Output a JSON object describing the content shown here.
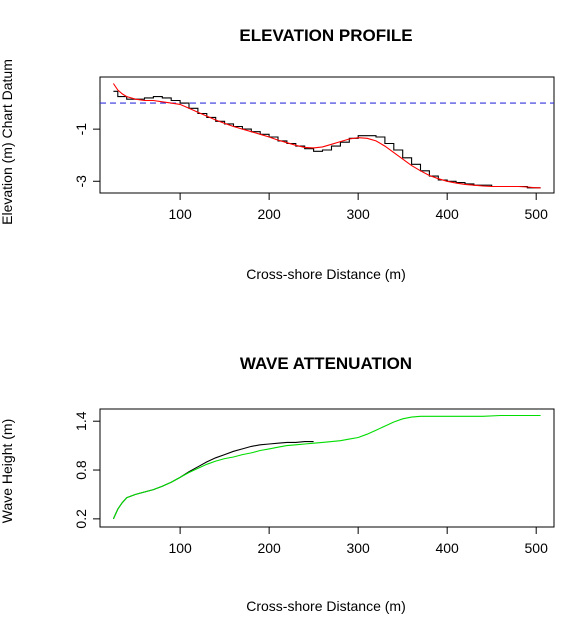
{
  "chart_data": [
    {
      "type": "line",
      "title": "ELEVATION PROFILE",
      "xlabel": "Cross-shore Distance (m)",
      "ylabel": "Elevation (m) Chart Datum",
      "xlim": [
        10,
        520
      ],
      "ylim": [
        -3.45,
        1.0
      ],
      "xticks": [
        100,
        200,
        300,
        400,
        500
      ],
      "yticks": [
        -3,
        -1
      ],
      "grid": false,
      "reference_line": {
        "y": 0,
        "style": "dashed",
        "color": "#3333dd"
      },
      "series": [
        {
          "color": "#000000",
          "style": "step",
          "x": [
            25,
            30,
            40,
            50,
            60,
            70,
            80,
            90,
            100,
            110,
            120,
            130,
            140,
            150,
            160,
            170,
            180,
            190,
            200,
            210,
            220,
            230,
            240,
            250,
            260,
            270,
            280,
            290,
            300,
            310,
            320,
            330,
            340,
            350,
            360,
            370,
            380,
            390,
            400,
            410,
            420,
            430,
            440,
            450,
            460,
            470,
            480,
            490,
            500,
            505
          ],
          "y": [
            0.45,
            0.25,
            0.15,
            0.15,
            0.2,
            0.25,
            0.2,
            0.1,
            0.0,
            -0.2,
            -0.4,
            -0.55,
            -0.7,
            -0.8,
            -0.9,
            -1.0,
            -1.1,
            -1.2,
            -1.3,
            -1.45,
            -1.55,
            -1.65,
            -1.75,
            -1.85,
            -1.8,
            -1.65,
            -1.5,
            -1.35,
            -1.25,
            -1.25,
            -1.3,
            -1.55,
            -1.8,
            -2.1,
            -2.35,
            -2.6,
            -2.8,
            -2.95,
            -3.0,
            -3.05,
            -3.1,
            -3.15,
            -3.15,
            -3.2,
            -3.2,
            -3.2,
            -3.2,
            -3.25,
            -3.25,
            -3.25
          ]
        },
        {
          "color": "#ff0000",
          "style": "line",
          "x": [
            25,
            30,
            35,
            40,
            45,
            50,
            60,
            70,
            80,
            90,
            100,
            110,
            120,
            130,
            140,
            150,
            160,
            170,
            180,
            190,
            200,
            210,
            220,
            230,
            240,
            250,
            260,
            270,
            280,
            290,
            300,
            310,
            320,
            330,
            340,
            350,
            360,
            370,
            380,
            390,
            400,
            410,
            420,
            430,
            440,
            450,
            460,
            470,
            480,
            490,
            500,
            505
          ],
          "y": [
            0.75,
            0.5,
            0.35,
            0.25,
            0.2,
            0.15,
            0.1,
            0.1,
            0.05,
            0.0,
            -0.05,
            -0.2,
            -0.35,
            -0.5,
            -0.65,
            -0.78,
            -0.9,
            -1.0,
            -1.1,
            -1.2,
            -1.3,
            -1.42,
            -1.52,
            -1.62,
            -1.7,
            -1.72,
            -1.68,
            -1.58,
            -1.48,
            -1.38,
            -1.33,
            -1.35,
            -1.45,
            -1.65,
            -1.9,
            -2.15,
            -2.4,
            -2.6,
            -2.78,
            -2.9,
            -3.0,
            -3.07,
            -3.12,
            -3.15,
            -3.18,
            -3.2,
            -3.2,
            -3.2,
            -3.2,
            -3.22,
            -3.25,
            -3.25
          ]
        }
      ]
    },
    {
      "type": "line",
      "title": "WAVE ATTENUATION",
      "xlabel": "Cross-shore Distance (m)",
      "ylabel": "Wave Height (m)",
      "xlim": [
        10,
        520
      ],
      "ylim": [
        0.1,
        1.55
      ],
      "xticks": [
        100,
        200,
        300,
        400,
        500
      ],
      "yticks": [
        0.2,
        0.8,
        1.4
      ],
      "grid": false,
      "series": [
        {
          "color": "#000000",
          "style": "line",
          "x": [
            25,
            30,
            35,
            40,
            50,
            60,
            70,
            80,
            90,
            100,
            110,
            120,
            130,
            140,
            150,
            160,
            170,
            180,
            190,
            200,
            210,
            220,
            230,
            240,
            250
          ],
          "y": [
            0.2,
            0.32,
            0.4,
            0.46,
            0.5,
            0.53,
            0.56,
            0.6,
            0.65,
            0.71,
            0.78,
            0.84,
            0.9,
            0.95,
            0.99,
            1.03,
            1.06,
            1.09,
            1.11,
            1.12,
            1.13,
            1.14,
            1.14,
            1.15,
            1.15
          ]
        },
        {
          "color": "#00dd00",
          "style": "line",
          "x": [
            25,
            30,
            35,
            40,
            50,
            60,
            70,
            80,
            90,
            100,
            110,
            120,
            130,
            140,
            150,
            160,
            170,
            180,
            190,
            200,
            210,
            220,
            230,
            240,
            250,
            260,
            270,
            280,
            290,
            300,
            310,
            320,
            330,
            340,
            350,
            360,
            370,
            380,
            390,
            400,
            420,
            440,
            460,
            480,
            500,
            505
          ],
          "y": [
            0.2,
            0.32,
            0.4,
            0.46,
            0.5,
            0.53,
            0.56,
            0.6,
            0.65,
            0.71,
            0.77,
            0.82,
            0.87,
            0.91,
            0.94,
            0.96,
            0.99,
            1.01,
            1.04,
            1.06,
            1.08,
            1.1,
            1.11,
            1.12,
            1.13,
            1.14,
            1.15,
            1.16,
            1.18,
            1.2,
            1.24,
            1.29,
            1.34,
            1.39,
            1.43,
            1.45,
            1.46,
            1.46,
            1.46,
            1.46,
            1.46,
            1.46,
            1.47,
            1.47,
            1.47,
            1.47
          ]
        }
      ]
    }
  ]
}
